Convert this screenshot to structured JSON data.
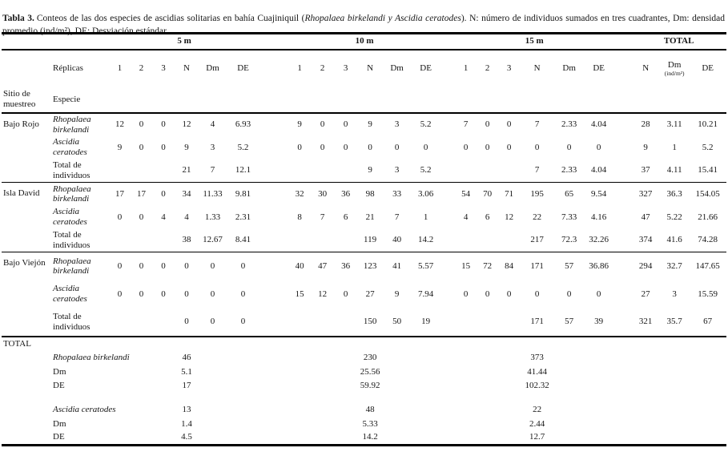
{
  "caption": {
    "label": "Tabla 3.",
    "parts": [
      {
        "text": "Conteos de las dos especies de ascidias solitarias en bahía Cuajiniquil (",
        "style": "normal"
      },
      {
        "text": "Rhopalaea birkelandi",
        "style": "italic"
      },
      {
        "text": " y ",
        "style": "italic"
      },
      {
        "text": "Ascidia ceratodes",
        "style": "italic"
      },
      {
        "text": "). N: número de individuos sumados en tres cuadrantes, Dm: densidad promedio (ind/m²), DE: Desviación estándar.",
        "style": "normal"
      }
    ]
  },
  "table": {
    "depth_groups": [
      "5 m",
      "10 m",
      "15 m"
    ],
    "total_group": "TOTAL",
    "replicas_label": "Réplicas",
    "site_header": "Sitio de muestreo",
    "species_header": "Especie",
    "sub_headers": [
      "1",
      "2",
      "3",
      "N",
      "Dm",
      "DE"
    ],
    "total_sub": {
      "n": "N",
      "dm_main": "Dm",
      "dm_sub": "(ind/m²)",
      "de": "DE"
    },
    "sites": [
      {
        "name": "Bajo Rojo",
        "rows": [
          {
            "species": "Rhopalaea birkelandi",
            "italic": true,
            "d5": [
              "12",
              "0",
              "0",
              "12",
              "4",
              "6.93"
            ],
            "d10": [
              "9",
              "0",
              "0",
              "9",
              "3",
              "5.2"
            ],
            "d15": [
              "7",
              "0",
              "0",
              "7",
              "2.33",
              "4.04"
            ],
            "total": [
              "28",
              "3.11",
              "10.21"
            ]
          },
          {
            "species": "Ascidia ceratodes",
            "italic": true,
            "d5": [
              "9",
              "0",
              "0",
              "9",
              "3",
              "5.2"
            ],
            "d10": [
              "0",
              "0",
              "0",
              "0",
              "0",
              "0"
            ],
            "d15": [
              "0",
              "0",
              "0",
              "0",
              "0",
              "0"
            ],
            "total": [
              "9",
              "1",
              "5.2"
            ]
          },
          {
            "species": "Total de individuos",
            "italic": false,
            "d5": [
              "",
              "",
              "",
              "21",
              "7",
              "12.1"
            ],
            "d10": [
              "",
              "",
              "",
              "9",
              "3",
              "5.2"
            ],
            "d15": [
              "",
              "",
              "",
              "7",
              "2.33",
              "4.04"
            ],
            "total": [
              "37",
              "4.11",
              "15.41"
            ]
          }
        ]
      },
      {
        "name": "Isla David",
        "rows": [
          {
            "species": "Rhopalaea birkelandi",
            "italic": true,
            "d5": [
              "17",
              "17",
              "0",
              "34",
              "11.33",
              "9.81"
            ],
            "d10": [
              "32",
              "30",
              "36",
              "98",
              "33",
              "3.06"
            ],
            "d15": [
              "54",
              "70",
              "71",
              "195",
              "65",
              "9.54"
            ],
            "total": [
              "327",
              "36.3",
              "154.05"
            ]
          },
          {
            "species": "Ascidia ceratodes",
            "italic": true,
            "d5": [
              "0",
              "0",
              "4",
              "4",
              "1.33",
              "2.31"
            ],
            "d10": [
              "8",
              "7",
              "6",
              "21",
              "7",
              "1"
            ],
            "d15": [
              "4",
              "6",
              "12",
              "22",
              "7.33",
              "4.16"
            ],
            "total": [
              "47",
              "5.22",
              "21.66"
            ]
          },
          {
            "species": "Total de individuos",
            "italic": false,
            "d5": [
              "",
              "",
              "",
              "38",
              "12.67",
              "8.41"
            ],
            "d10": [
              "",
              "",
              "",
              "119",
              "40",
              "14.2"
            ],
            "d15": [
              "",
              "",
              "",
              "217",
              "72.3",
              "32.26"
            ],
            "total": [
              "374",
              "41.6",
              "74.28"
            ]
          }
        ]
      },
      {
        "name": "Bajo Viejón",
        "rows": [
          {
            "species": "Rhopalaea birkelandi",
            "italic": true,
            "d5": [
              "0",
              "0",
              "0",
              "0",
              "0",
              "0"
            ],
            "d10": [
              "40",
              "47",
              "36",
              "123",
              "41",
              "5.57"
            ],
            "d15": [
              "15",
              "72",
              "84",
              "171",
              "57",
              "36.86"
            ],
            "total": [
              "294",
              "32.7",
              "147.65"
            ]
          },
          {
            "species": "Ascidia ceratodes",
            "italic": true,
            "d5": [
              "0",
              "0",
              "0",
              "0",
              "0",
              "0"
            ],
            "d10": [
              "15",
              "12",
              "0",
              "27",
              "9",
              "7.94"
            ],
            "d15": [
              "0",
              "0",
              "0",
              "0",
              "0",
              "0"
            ],
            "total": [
              "27",
              "3",
              "15.59"
            ]
          },
          {
            "species": "Total de individuos",
            "italic": false,
            "d5": [
              "",
              "",
              "",
              "0",
              "0",
              "0"
            ],
            "d10": [
              "",
              "",
              "",
              "150",
              "50",
              "19"
            ],
            "d15": [
              "",
              "",
              "",
              "171",
              "57",
              "39"
            ],
            "total": [
              "321",
              "35.7",
              "67"
            ]
          }
        ]
      }
    ],
    "grand_total": {
      "label": "TOTAL",
      "dm_label": "Dm",
      "de_label": "DE",
      "blocks": [
        {
          "species": "Rhopalaea birkelandi",
          "n": [
            "46",
            "230",
            "373"
          ],
          "dm": [
            "5.1",
            "25.56",
            "41.44"
          ],
          "de": [
            "17",
            "59.92",
            "102.32"
          ]
        },
        {
          "species": "Ascidia ceratodes",
          "n": [
            "13",
            "48",
            "22"
          ],
          "dm": [
            "1.4",
            "5.33",
            "2.44"
          ],
          "de": [
            "4.5",
            "14.2",
            "12.7"
          ]
        }
      ]
    }
  }
}
